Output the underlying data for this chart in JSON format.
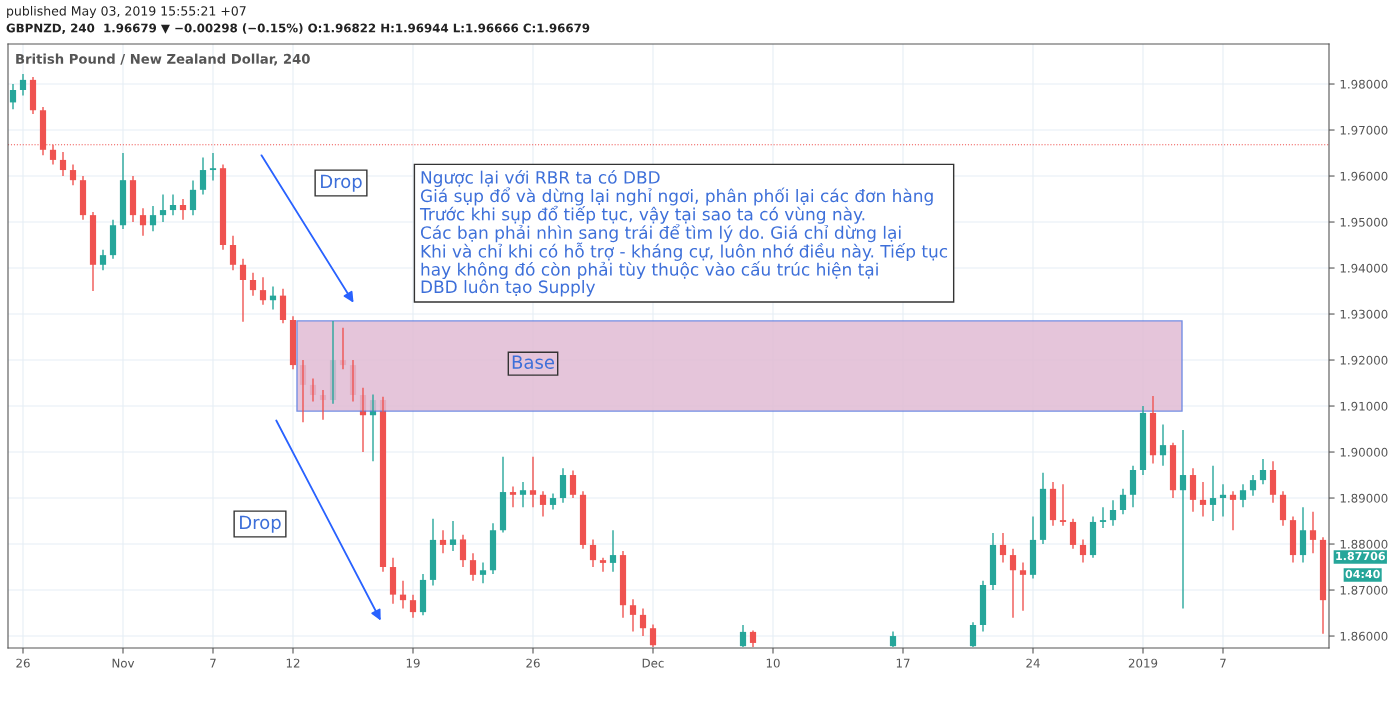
{
  "chart_data": {
    "type": "candlestick",
    "title": "British Pound / New Zealand Dollar, 240",
    "subtitle": "GBPNZD, 240  1.96679 ▼ −0.00298 (−0.15%) O:1.96822 H:1.96944 L:1.96666 C:1.96679",
    "annotations": [
      "published May 03, 2019 15:55:21 +07",
      "Drop",
      "Drop",
      "Ngược lại với RBR ta có DBD\nGiá sụp đổ và dừng lại nghỉ ngơi, phân phối lại các đơn hàng\nTrước khi sụp đổ tiếp tục, vậy tại sao ta có vùng này.\nCác bạn phải nhìn sang trái để tìm lý do. Giá chỉ dừng lại\nKhi và chỉ khi có hỗ trợ - kháng cự, luôn nhớ điều này. Tiếp tục\nhay không đó còn phải tùy thuộc vào cấu trúc hiện tại\nDBD luôn tạo Supply",
      "1.87706",
      "04:40"
    ],
    "categories": [
      null,
      "26",
      null,
      null,
      null,
      null,
      null,
      null,
      null,
      null,
      null,
      "Nov",
      null,
      null,
      null,
      null,
      null,
      null,
      null,
      null,
      "7",
      null,
      null,
      null,
      null,
      null,
      null,
      null,
      "12",
      null,
      null,
      null,
      null,
      null,
      null,
      null,
      null,
      null,
      null,
      null,
      "19",
      null,
      null,
      null,
      null,
      null,
      null,
      null,
      null,
      null,
      null,
      null,
      "26",
      null,
      null,
      null,
      null,
      null,
      null,
      null,
      null,
      null,
      null,
      null,
      "Dec",
      null,
      null,
      null,
      null,
      null,
      null,
      null,
      null,
      null,
      null,
      null,
      "10",
      null,
      null,
      null,
      null,
      null,
      null,
      null,
      null,
      null,
      null,
      null,
      null,
      "17",
      null,
      null,
      null,
      null,
      null,
      null,
      null,
      null,
      null,
      null,
      null,
      null,
      "24",
      null,
      null,
      null,
      null,
      null,
      null,
      null,
      null,
      null,
      null,
      "2019",
      null,
      null,
      null,
      null,
      null,
      null,
      null,
      "7",
      null,
      null,
      null,
      null,
      null,
      null,
      null,
      null,
      null,
      null
    ],
    "ohlc": [
      [
        1.976,
        1.98,
        1.9745,
        1.9787
      ],
      [
        1.9787,
        1.9822,
        1.9775,
        1.9809
      ],
      [
        1.9809,
        1.9815,
        1.9735,
        1.9743
      ],
      [
        1.9743,
        1.975,
        1.9645,
        1.9657
      ],
      [
        1.9657,
        1.9668,
        1.9625,
        1.9635
      ],
      [
        1.9635,
        1.9652,
        1.96,
        1.9613
      ],
      [
        1.9613,
        1.9625,
        1.958,
        1.9591
      ],
      [
        1.9591,
        1.96,
        1.9505,
        1.9515
      ],
      [
        1.9515,
        1.9522,
        1.935,
        1.9407
      ],
      [
        1.9407,
        1.944,
        1.9395,
        1.9428
      ],
      [
        1.9428,
        1.9505,
        1.942,
        1.9493
      ],
      [
        1.9493,
        1.965,
        1.9485,
        1.9591
      ],
      [
        1.9591,
        1.96,
        1.95,
        1.9515
      ],
      [
        1.9515,
        1.953,
        1.947,
        1.9493
      ],
      [
        1.9493,
        1.9535,
        1.948,
        1.9515
      ],
      [
        1.9515,
        1.956,
        1.95,
        1.9526
      ],
      [
        1.9526,
        1.956,
        1.9515,
        1.9537
      ],
      [
        1.9537,
        1.955,
        1.9505,
        1.9526
      ],
      [
        1.9526,
        1.959,
        1.9515,
        1.957
      ],
      [
        1.957,
        1.964,
        1.956,
        1.9613
      ],
      [
        1.9613,
        1.965,
        1.959,
        1.9617
      ],
      [
        1.9617,
        1.9625,
        1.944,
        1.945
      ],
      [
        1.945,
        1.947,
        1.9395,
        1.9407
      ],
      [
        1.9407,
        1.942,
        1.9283,
        1.9374
      ],
      [
        1.9374,
        1.939,
        1.934,
        1.9352
      ],
      [
        1.9352,
        1.938,
        1.932,
        1.933
      ],
      [
        1.933,
        1.936,
        1.931,
        1.934
      ],
      [
        1.934,
        1.9355,
        1.928,
        1.9287
      ],
      [
        1.9287,
        1.9295,
        1.918,
        1.9189
      ],
      [
        1.9189,
        1.92,
        1.9065,
        1.9146
      ],
      [
        1.9146,
        1.916,
        1.911,
        1.9124
      ],
      [
        1.9124,
        1.9135,
        1.907,
        1.9113
      ],
      [
        1.9113,
        1.9285,
        1.9105,
        1.92
      ],
      [
        1.92,
        1.927,
        1.918,
        1.9189
      ],
      [
        1.9189,
        1.92,
        1.911,
        1.9124
      ],
      [
        1.9124,
        1.914,
        1.9,
        1.908
      ],
      [
        1.908,
        1.9125,
        1.898,
        1.9113
      ],
      [
        1.9113,
        1.912,
        1.874,
        1.875
      ],
      [
        1.875,
        1.877,
        1.867,
        1.869
      ],
      [
        1.869,
        1.872,
        1.866,
        1.8678
      ],
      [
        1.8678,
        1.869,
        1.864,
        1.8652
      ],
      [
        1.8652,
        1.8735,
        1.8645,
        1.8722
      ],
      [
        1.8722,
        1.8855,
        1.871,
        1.8809
      ],
      [
        1.8809,
        1.883,
        1.878,
        1.8798
      ],
      [
        1.8798,
        1.885,
        1.8785,
        1.881
      ],
      [
        1.881,
        1.882,
        1.875,
        1.8765
      ],
      [
        1.8765,
        1.878,
        1.872,
        1.8733
      ],
      [
        1.8733,
        1.876,
        1.8715,
        1.8743
      ],
      [
        1.8743,
        1.8845,
        1.8735,
        1.883
      ],
      [
        1.883,
        1.899,
        1.8825,
        1.8913
      ],
      [
        1.8913,
        1.8925,
        1.888,
        1.8907
      ],
      [
        1.8907,
        1.8935,
        1.888,
        1.8917
      ],
      [
        1.8917,
        1.899,
        1.888,
        1.8907
      ],
      [
        1.8907,
        1.8915,
        1.886,
        1.8885
      ],
      [
        1.8885,
        1.891,
        1.8875,
        1.89
      ],
      [
        1.89,
        1.8965,
        1.889,
        1.895
      ],
      [
        1.895,
        1.896,
        1.89,
        1.8907
      ],
      [
        1.8907,
        1.8915,
        1.879,
        1.8798
      ],
      [
        1.8798,
        1.881,
        1.875,
        1.8765
      ],
      [
        1.8765,
        1.877,
        1.874,
        1.8759
      ],
      [
        1.8759,
        1.883,
        1.874,
        1.8776
      ],
      [
        1.8776,
        1.8785,
        1.864,
        1.8667
      ],
      [
        1.8667,
        1.868,
        1.861,
        1.8646
      ],
      [
        1.8646,
        1.866,
        1.86,
        1.8617
      ],
      [
        1.8617,
        1.8625,
        1.8576,
        1.858
      ],
      null,
      null,
      null,
      null,
      null,
      null,
      null,
      null,
      [
        1.8578,
        1.8624,
        1.8576,
        1.8609
      ],
      [
        1.8609,
        1.8612,
        1.8576,
        1.8585
      ],
      null,
      null,
      null,
      null,
      null,
      null,
      null,
      null,
      null,
      null,
      null,
      null,
      null,
      [
        1.8578,
        1.861,
        1.8576,
        1.86
      ],
      null,
      null,
      null,
      null,
      null,
      null,
      null,
      [
        1.8578,
        1.863,
        1.8576,
        1.8624
      ],
      [
        1.8624,
        1.872,
        1.861,
        1.8711
      ],
      [
        1.8711,
        1.8824,
        1.87,
        1.8798
      ],
      [
        1.8798,
        1.8824,
        1.876,
        1.8776
      ],
      [
        1.8776,
        1.879,
        1.864,
        1.8743
      ],
      [
        1.8743,
        1.876,
        1.8655,
        1.8733
      ],
      [
        1.8733,
        1.886,
        1.8725,
        1.8809
      ],
      [
        1.8809,
        1.8955,
        1.88,
        1.892
      ],
      [
        1.892,
        1.8935,
        1.884,
        1.8852
      ],
      [
        1.8852,
        1.893,
        1.884,
        1.8848
      ],
      [
        1.8848,
        1.8855,
        1.879,
        1.8798
      ],
      [
        1.8798,
        1.881,
        1.876,
        1.8776
      ],
      [
        1.8776,
        1.886,
        1.877,
        1.8848
      ],
      [
        1.8848,
        1.888,
        1.8835,
        1.8852
      ],
      [
        1.8852,
        1.8895,
        1.884,
        1.8874
      ],
      [
        1.8874,
        1.892,
        1.8865,
        1.8907
      ],
      [
        1.8907,
        1.897,
        1.888,
        1.8961
      ],
      [
        1.8961,
        1.91,
        1.895,
        1.9085
      ],
      [
        1.9085,
        1.9122,
        1.8975,
        1.8993
      ],
      [
        1.8993,
        1.906,
        1.897,
        1.9015
      ],
      [
        1.9015,
        1.902,
        1.89,
        1.8917
      ],
      [
        1.8917,
        1.9048,
        1.866,
        1.895
      ],
      [
        1.895,
        1.8965,
        1.887,
        1.8896
      ],
      [
        1.8896,
        1.8935,
        1.886,
        1.8885
      ],
      [
        1.8885,
        1.897,
        1.885,
        1.89
      ],
      [
        1.89,
        1.893,
        1.886,
        1.8907
      ],
      [
        1.8907,
        1.8915,
        1.883,
        1.8896
      ],
      [
        1.8896,
        1.893,
        1.888,
        1.8917
      ],
      [
        1.8917,
        1.895,
        1.8905,
        1.8939
      ],
      [
        1.8939,
        1.8985,
        1.893,
        1.8961
      ],
      [
        1.8961,
        1.898,
        1.889,
        1.8907
      ],
      [
        1.8907,
        1.8915,
        1.884,
        1.8852
      ],
      [
        1.8852,
        1.886,
        1.876,
        1.8776
      ],
      [
        1.8776,
        1.888,
        1.876,
        1.883
      ],
      [
        1.883,
        1.887,
        1.878,
        1.8809
      ],
      [
        1.8809,
        1.8815,
        1.8605,
        1.8678
      ]
    ],
    "colors": [
      "#26a69a",
      "#26a69a",
      "#ef5350",
      "#ef5350",
      "#ef5350",
      "#ef5350",
      "#ef5350",
      "#ef5350",
      "#ef5350",
      "#26a69a",
      "#26a69a",
      "#26a69a",
      "#ef5350",
      "#ef5350",
      "#26a69a",
      "#26a69a",
      "#26a69a",
      "#ef5350",
      "#26a69a",
      "#26a69a",
      "#26a69a",
      "#ef5350",
      "#ef5350",
      "#ef5350",
      "#ef5350",
      "#ef5350",
      "#26a69a",
      "#ef5350",
      "#ef5350",
      "#ef5350",
      "#ef5350",
      "#ef5350",
      "#26a69a",
      "#ef5350",
      "#ef5350",
      "#ef5350",
      "#26a69a",
      "#ef5350",
      "#ef5350",
      "#ef5350",
      "#ef5350",
      "#26a69a",
      "#26a69a",
      "#ef5350",
      "#26a69a",
      "#ef5350",
      "#ef5350",
      "#26a69a",
      "#26a69a",
      "#26a69a",
      "#ef5350",
      "#26a69a",
      "#ef5350",
      "#ef5350",
      "#26a69a",
      "#26a69a",
      "#ef5350",
      "#ef5350",
      "#ef5350",
      "#ef5350",
      "#26a69a",
      "#ef5350",
      "#ef5350",
      "#ef5350",
      "#ef5350",
      null,
      null,
      null,
      null,
      null,
      null,
      null,
      null,
      "#26a69a",
      "#ef5350",
      null,
      null,
      null,
      null,
      null,
      null,
      null,
      null,
      null,
      null,
      null,
      null,
      null,
      "#26a69a",
      null,
      null,
      null,
      null,
      null,
      null,
      null,
      "#26a69a",
      "#26a69a",
      "#26a69a",
      "#ef5350",
      "#ef5350",
      "#ef5350",
      "#26a69a",
      "#26a69a",
      "#ef5350",
      "#ef5350",
      "#ef5350",
      "#ef5350",
      "#26a69a",
      "#26a69a",
      "#26a69a",
      "#26a69a",
      "#26a69a",
      "#26a69a",
      "#ef5350",
      "#26a69a",
      "#ef5350",
      "#26a69a",
      "#ef5350",
      "#ef5350",
      "#26a69a",
      "#26a69a",
      "#ef5350",
      "#26a69a",
      "#26a69a",
      "#26a69a",
      "#ef5350",
      "#ef5350",
      "#ef5350",
      "#26a69a",
      "#ef5350",
      "#ef5350"
    ],
    "ylim": [
      1.8574,
      1.9887
    ],
    "yticks": [
      {
        "value": 1.86,
        "label": "1.86000"
      },
      {
        "value": 1.87,
        "label": "1.87000"
      },
      {
        "value": 1.88,
        "label": "1.88000"
      },
      {
        "value": 1.89,
        "label": "1.89000"
      },
      {
        "value": 1.9,
        "label": "1.90000"
      },
      {
        "value": 1.91,
        "label": "1.91000"
      },
      {
        "value": 1.92,
        "label": "1.92000"
      },
      {
        "value": 1.93,
        "label": "1.93000"
      },
      {
        "value": 1.94,
        "label": "1.94000"
      },
      {
        "value": 1.95,
        "label": "1.95000"
      },
      {
        "value": 1.96,
        "label": "1.96000"
      },
      {
        "value": 1.97,
        "label": "1.97000"
      },
      {
        "value": 1.98,
        "label": "1.98000"
      }
    ],
    "grid": true,
    "ref_lines": [
      {
        "axis": "y",
        "value": 1.96679,
        "color": "#ef5350",
        "line_style": "dotted"
      }
    ],
    "bands": [
      {
        "axis": "y",
        "from": 1.9089,
        "to": 1.9285,
        "label": "Base",
        "color": "#e1bcd4"
      }
    ]
  }
}
